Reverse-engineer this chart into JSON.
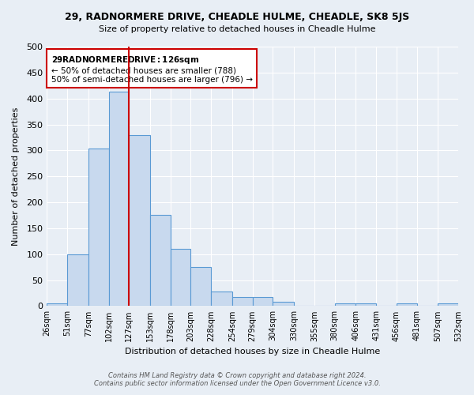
{
  "title1": "29, RADNORMERE DRIVE, CHEADLE HULME, CHEADLE, SK8 5JS",
  "title2": "Size of property relative to detached houses in Cheadle Hulme",
  "xlabel": "Distribution of detached houses by size in Cheadle Hulme",
  "ylabel": "Number of detached properties",
  "bar_edges": [
    26,
    51,
    77,
    102,
    127,
    153,
    178,
    203,
    228,
    254,
    279,
    304,
    330,
    355,
    380,
    406,
    431,
    456,
    481,
    507,
    532
  ],
  "bar_heights": [
    5,
    99,
    303,
    413,
    330,
    176,
    110,
    75,
    28,
    18,
    18,
    9,
    0,
    0,
    5,
    5,
    0,
    5,
    0,
    5
  ],
  "bar_color": "#c8d9ee",
  "bar_edge_color": "#5a9ad4",
  "vline_x": 127,
  "vline_color": "#cc0000",
  "annotation_title": "29 RADNORMERE DRIVE: 126sqm",
  "annotation_line1": "← 50% of detached houses are smaller (788)",
  "annotation_line2": "50% of semi-detached houses are larger (796) →",
  "annotation_box_edge": "#cc0000",
  "annotation_box_bg": "white",
  "ylim": [
    0,
    500
  ],
  "footer1": "Contains HM Land Registry data © Crown copyright and database right 2024.",
  "footer2": "Contains public sector information licensed under the Open Government Licence v3.0.",
  "bg_color": "#e8eef5",
  "grid_color": "white"
}
